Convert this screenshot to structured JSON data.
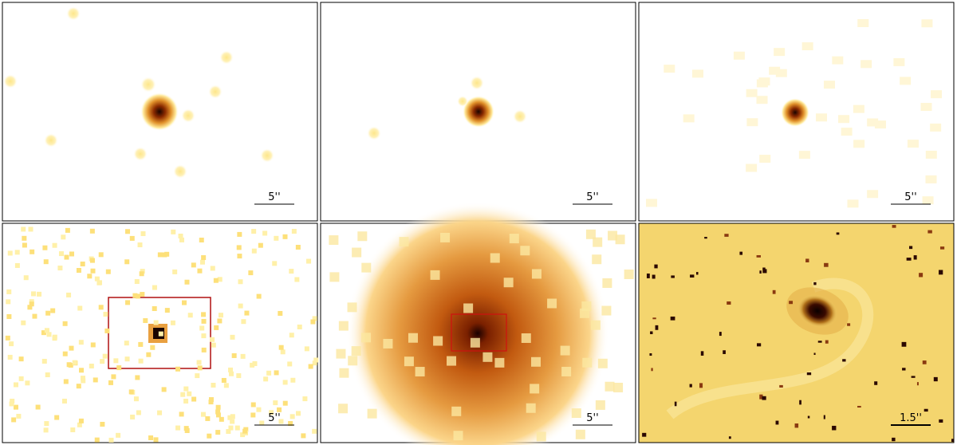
{
  "panels": [
    {
      "scale_label": "5''"
    },
    {
      "scale_label": "5''"
    },
    {
      "scale_label": "5''"
    },
    {
      "scale_label": "5''"
    },
    {
      "scale_label": "5''"
    },
    {
      "scale_label": "1.5''"
    }
  ]
}
